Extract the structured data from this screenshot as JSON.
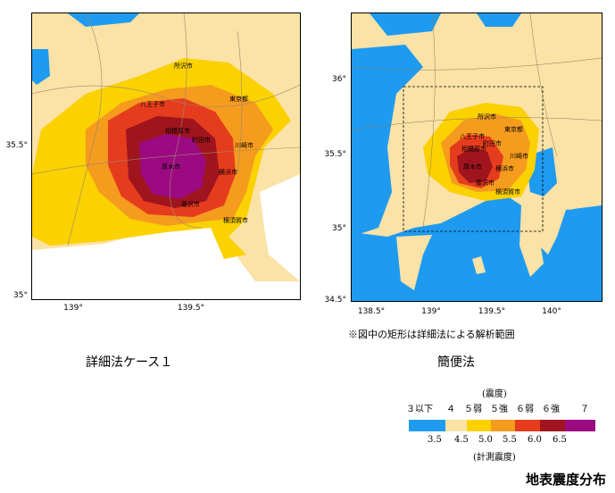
{
  "left_map": {
    "x_ticks": [
      "139°",
      "139.5°"
    ],
    "y_ticks": [
      "35.5°",
      "35°"
    ],
    "cities": [
      "所沢市",
      "東京都",
      "八王子市",
      "相模原市",
      "町田市",
      "川崎市",
      "厚木市",
      "横浜市",
      "藤沢市",
      "横須賀市"
    ],
    "caption": "詳細法ケース１"
  },
  "right_map": {
    "x_ticks": [
      "138.5°",
      "139°",
      "139.5°",
      "140°"
    ],
    "y_ticks": [
      "36°",
      "35.5°",
      "35°",
      "34.5°"
    ],
    "cities": [
      "所沢市",
      "東京都",
      "八王子市",
      "相模原市",
      "町田市",
      "川崎市",
      "厚木市",
      "横浜市",
      "藤沢市",
      "横須賀市"
    ],
    "note": "※図中の矩形は詳細法による解析範囲",
    "caption": "簡便法"
  },
  "legend": {
    "intensity_title": "(震度)",
    "intensity_classes": [
      "３以下",
      "４",
      "５弱",
      "５強",
      "６弱",
      "６強",
      "７"
    ],
    "instrumental_values": [
      "3.5",
      "4.5",
      "5.0",
      "5.5",
      "6.0",
      "6.5"
    ],
    "instrumental_title": "(計測震度)",
    "colors": [
      "#1e9bf0",
      "#fbe2a6",
      "#fbd100",
      "#f59b1e",
      "#e63c1e",
      "#a0141e",
      "#9c0a82"
    ]
  },
  "title": "地表震度分布"
}
